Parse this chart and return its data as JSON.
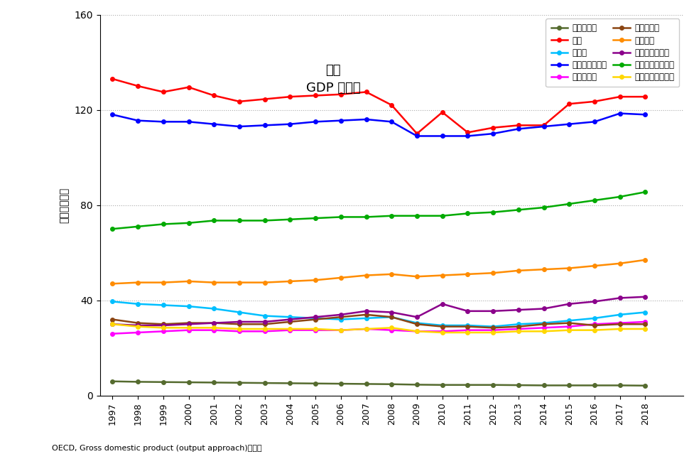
{
  "title_line1": "日本",
  "title_line2": "GDP 生産面",
  "ylabel": "金額［兆円］",
  "xlabel_note": "OECD, Gross domestic product (output approach)の数値",
  "years": [
    1997,
    1998,
    1999,
    2000,
    2001,
    2002,
    2003,
    2004,
    2005,
    2006,
    2007,
    2008,
    2009,
    2010,
    2011,
    2012,
    2013,
    2014,
    2015,
    2016,
    2017,
    2018
  ],
  "series": [
    {
      "name": "農林水産業",
      "color": "#556B2F",
      "legend_col": 0,
      "values": [
        6.0,
        5.8,
        5.7,
        5.6,
        5.5,
        5.4,
        5.3,
        5.2,
        5.1,
        5.0,
        4.9,
        4.8,
        4.6,
        4.5,
        4.5,
        4.5,
        4.4,
        4.3,
        4.3,
        4.3,
        4.3,
        4.2
      ]
    },
    {
      "name": "工業",
      "color": "#FF0000",
      "legend_col": 1,
      "values": [
        133.0,
        130.0,
        127.5,
        129.5,
        126.0,
        123.5,
        124.5,
        125.5,
        126.0,
        126.5,
        127.5,
        122.0,
        110.0,
        119.0,
        110.5,
        112.5,
        113.5,
        113.5,
        122.5,
        123.5,
        125.5,
        125.5
      ]
    },
    {
      "name": "建設業",
      "color": "#00BFFF",
      "legend_col": 0,
      "values": [
        39.5,
        38.5,
        38.0,
        37.5,
        36.5,
        35.0,
        33.5,
        33.0,
        32.5,
        32.0,
        32.5,
        33.0,
        30.5,
        29.5,
        29.5,
        29.0,
        30.0,
        30.5,
        31.5,
        32.5,
        34.0,
        35.0
      ]
    },
    {
      "name": "一般サービス業",
      "color": "#0000FF",
      "legend_col": 1,
      "values": [
        118.0,
        115.5,
        115.0,
        115.0,
        114.0,
        113.0,
        113.5,
        114.0,
        115.0,
        115.5,
        116.0,
        115.0,
        109.0,
        109.0,
        109.0,
        110.0,
        112.0,
        113.0,
        114.0,
        115.0,
        118.5,
        118.0
      ]
    },
    {
      "name": "情報通信業",
      "color": "#FF00FF",
      "legend_col": 0,
      "values": [
        26.0,
        26.5,
        27.0,
        27.5,
        27.5,
        27.0,
        27.0,
        27.5,
        27.5,
        27.5,
        28.0,
        27.5,
        27.0,
        27.0,
        27.5,
        27.5,
        28.0,
        28.5,
        29.0,
        30.0,
        30.5,
        31.0
      ]
    },
    {
      "name": "金融保険業",
      "color": "#8B4513",
      "legend_col": 1,
      "values": [
        32.0,
        30.5,
        30.0,
        30.5,
        30.5,
        30.0,
        30.0,
        31.0,
        32.0,
        33.0,
        34.0,
        33.0,
        30.0,
        29.0,
        29.0,
        28.5,
        29.0,
        30.0,
        30.5,
        29.5,
        30.0,
        30.0
      ]
    },
    {
      "name": "不動産業",
      "color": "#FF8C00",
      "legend_col": 0,
      "values": [
        47.0,
        47.5,
        47.5,
        48.0,
        47.5,
        47.5,
        47.5,
        48.0,
        48.5,
        49.5,
        50.5,
        51.0,
        50.0,
        50.5,
        51.0,
        51.5,
        52.5,
        53.0,
        53.5,
        54.5,
        55.5,
        57.0
      ]
    },
    {
      "name": "専門サービス業",
      "color": "#8B008B",
      "legend_col": 1,
      "values": [
        30.0,
        29.5,
        29.5,
        30.0,
        30.5,
        31.0,
        31.0,
        32.0,
        33.0,
        34.0,
        35.5,
        35.0,
        33.0,
        38.5,
        35.5,
        35.5,
        36.0,
        36.5,
        38.5,
        39.5,
        41.0,
        41.5
      ]
    },
    {
      "name": "公務・教育・保健",
      "color": "#00AA00",
      "legend_col": 0,
      "values": [
        70.0,
        71.0,
        72.0,
        72.5,
        73.5,
        73.5,
        73.5,
        74.0,
        74.5,
        75.0,
        75.0,
        75.5,
        75.5,
        75.5,
        76.5,
        77.0,
        78.0,
        79.0,
        80.5,
        82.0,
        83.5,
        85.5
      ]
    },
    {
      "name": "その他サービス業",
      "color": "#FFD700",
      "legend_col": 1,
      "values": [
        30.0,
        29.0,
        28.5,
        28.5,
        28.5,
        28.0,
        28.0,
        28.0,
        28.0,
        27.5,
        28.0,
        28.5,
        27.0,
        26.5,
        26.5,
        26.5,
        27.0,
        27.0,
        27.5,
        27.5,
        28.0,
        28.0
      ]
    }
  ],
  "ylim": [
    0,
    160
  ],
  "yticks": [
    0,
    40,
    80,
    120,
    160
  ],
  "background_color": "#FFFFFF",
  "grid_color": "#AAAAAA"
}
